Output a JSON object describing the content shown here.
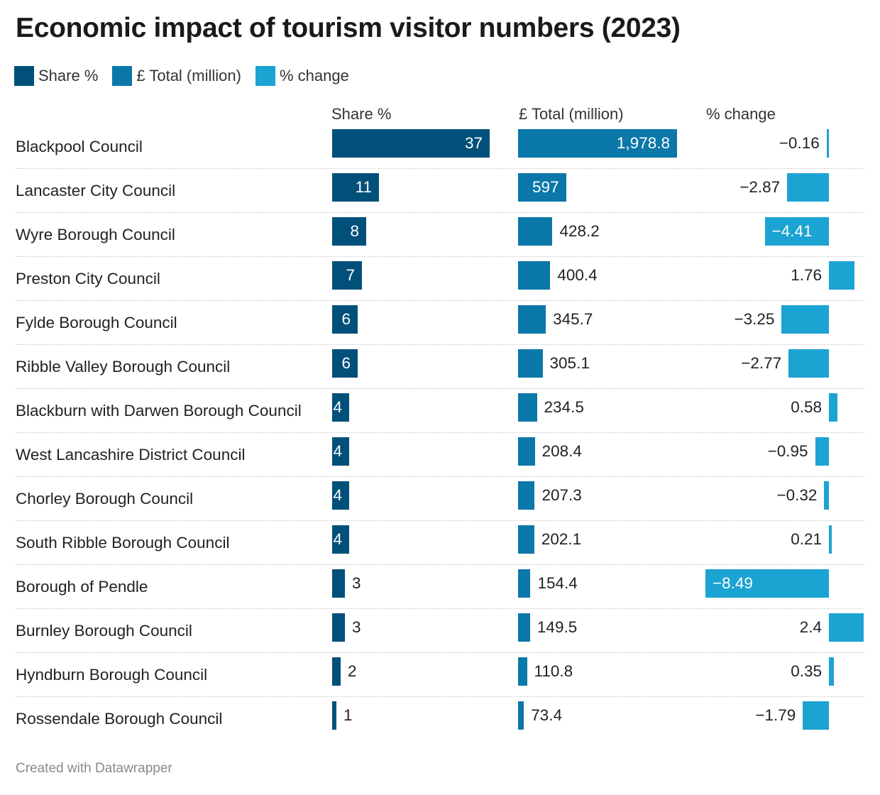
{
  "title": "Economic impact of tourism visitor numbers (2023)",
  "colors": {
    "share": "#00507a",
    "total": "#0a78a8",
    "change": "#1ba3d1"
  },
  "legend": [
    "Share %",
    "£ Total (million)",
    "% change"
  ],
  "footer": "Created with Datawrapper",
  "chart_data": {
    "type": "table",
    "columns": [
      "Share %",
      "£ Total (million)",
      "% change"
    ],
    "rows": [
      {
        "name": "Blackpool Council",
        "share": 37,
        "share_label": "37",
        "total": 1978.8,
        "total_label": "1,978.8",
        "change": -0.16,
        "change_label": "−0.16"
      },
      {
        "name": "Lancaster City Council",
        "share": 11,
        "share_label": "11",
        "total": 597,
        "total_label": "597",
        "change": -2.87,
        "change_label": "−2.87"
      },
      {
        "name": "Wyre Borough Council",
        "share": 8,
        "share_label": "8",
        "total": 428.2,
        "total_label": "428.2",
        "change": -4.41,
        "change_label": "−4.41"
      },
      {
        "name": "Preston City Council",
        "share": 7,
        "share_label": "7",
        "total": 400.4,
        "total_label": "400.4",
        "change": 1.76,
        "change_label": "1.76"
      },
      {
        "name": "Fylde Borough Council",
        "share": 6,
        "share_label": "6",
        "total": 345.7,
        "total_label": "345.7",
        "change": -3.25,
        "change_label": "−3.25"
      },
      {
        "name": "Ribble Valley Borough Council",
        "share": 6,
        "share_label": "6",
        "total": 305.1,
        "total_label": "305.1",
        "change": -2.77,
        "change_label": "−2.77"
      },
      {
        "name": "Blackburn with Darwen Borough Council",
        "share": 4,
        "share_label": "4",
        "total": 234.5,
        "total_label": "234.5",
        "change": 0.58,
        "change_label": "0.58"
      },
      {
        "name": "West Lancashire District Council",
        "share": 4,
        "share_label": "4",
        "total": 208.4,
        "total_label": "208.4",
        "change": -0.95,
        "change_label": "−0.95"
      },
      {
        "name": "Chorley Borough Council",
        "share": 4,
        "share_label": "4",
        "total": 207.3,
        "total_label": "207.3",
        "change": -0.32,
        "change_label": "−0.32"
      },
      {
        "name": "South Ribble Borough Council",
        "share": 4,
        "share_label": "4",
        "total": 202.1,
        "total_label": "202.1",
        "change": 0.21,
        "change_label": "0.21"
      },
      {
        "name": "Borough of Pendle",
        "share": 3,
        "share_label": "3",
        "total": 154.4,
        "total_label": "154.4",
        "change": -8.49,
        "change_label": "−8.49"
      },
      {
        "name": "Burnley Borough Council",
        "share": 3,
        "share_label": "3",
        "total": 149.5,
        "total_label": "149.5",
        "change": 2.4,
        "change_label": "2.4"
      },
      {
        "name": "Hyndburn Borough Council",
        "share": 2,
        "share_label": "2",
        "total": 110.8,
        "total_label": "110.8",
        "change": 0.35,
        "change_label": "0.35"
      },
      {
        "name": "Rossendale Borough Council",
        "share": 1,
        "share_label": "1",
        "total": 73.4,
        "total_label": "73.4",
        "change": -1.79,
        "change_label": "−1.79"
      }
    ]
  }
}
